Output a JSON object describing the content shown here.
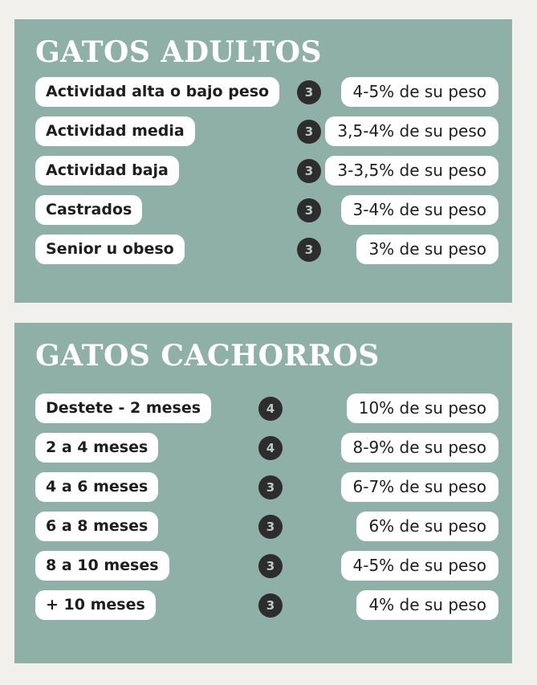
{
  "colors": {
    "page_bg": "#f2f0ec",
    "card_bg": "#8fb0a6",
    "pill_bg": "#ffffff",
    "text_dark": "#1e1e1e",
    "title_color": "#ffffff",
    "badge_bg": "#2d2d2d",
    "badge_text": "#b8cdc6"
  },
  "sections": [
    {
      "id": "gatos-adultos",
      "title": "GATOS ADULTOS",
      "rows": [
        {
          "label": "Actividad alta o bajo peso",
          "badge": "3",
          "value": "4-5% de su peso"
        },
        {
          "label": "Actividad media",
          "badge": "3",
          "value": "3,5-4% de su peso"
        },
        {
          "label": "Actividad baja",
          "badge": "3",
          "value": "3-3,5% de su peso"
        },
        {
          "label": "Castrados",
          "badge": "3",
          "value": "3-4% de su peso"
        },
        {
          "label": "Senior u obeso",
          "badge": "3",
          "value": "3% de su peso"
        }
      ]
    },
    {
      "id": "gatos-cachorros",
      "title": "GATOS CACHORROS",
      "rows": [
        {
          "label": "Destete - 2 meses",
          "badge": "4",
          "value": "10% de su peso"
        },
        {
          "label": "2 a 4 meses",
          "badge": "4",
          "value": "8-9% de su peso"
        },
        {
          "label": "4 a 6 meses",
          "badge": "3",
          "value": "6-7% de su peso"
        },
        {
          "label": "6 a 8 meses",
          "badge": "3",
          "value": "6% de su peso"
        },
        {
          "label": "8 a 10 meses",
          "badge": "3",
          "value": "4-5% de su peso"
        },
        {
          "label": "+ 10 meses",
          "badge": "3",
          "value": "4% de su peso"
        }
      ]
    }
  ]
}
